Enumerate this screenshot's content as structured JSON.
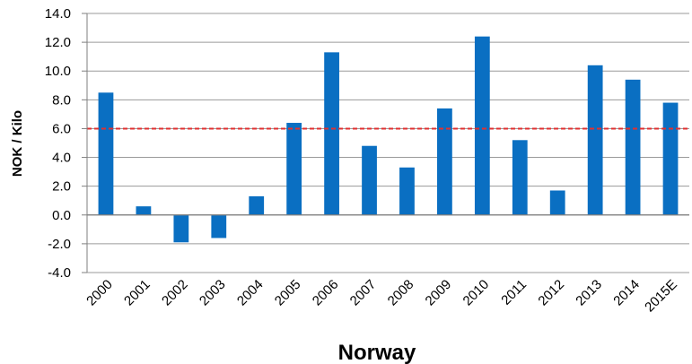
{
  "chart_data": {
    "type": "bar",
    "xlabel": "Norway",
    "ylabel": "NOK / Kilo",
    "categories": [
      "2000",
      "2001",
      "2002",
      "2003",
      "2004",
      "2005",
      "2006",
      "2007",
      "2008",
      "2009",
      "2010",
      "2011",
      "2012",
      "2013",
      "2014",
      "2015E"
    ],
    "values": [
      8.5,
      0.6,
      -1.9,
      -1.6,
      1.3,
      6.4,
      11.3,
      4.8,
      3.3,
      7.4,
      12.4,
      5.2,
      1.7,
      10.4,
      9.4,
      7.8
    ],
    "ylim": [
      -4.0,
      14.0
    ],
    "yticks": [
      -4.0,
      -2.0,
      0.0,
      2.0,
      4.0,
      6.0,
      8.0,
      10.0,
      12.0,
      14.0
    ],
    "reference_line": {
      "value": 6.0,
      "style": "dashed",
      "color": "#e03030"
    },
    "grid": true,
    "bar_color": "#0a6fc2"
  }
}
